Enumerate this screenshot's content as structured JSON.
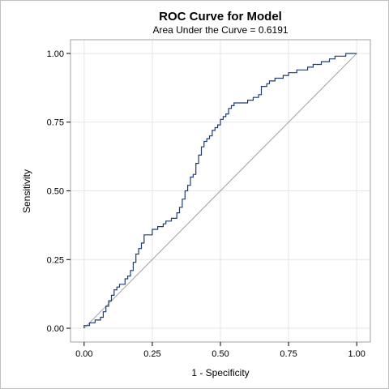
{
  "chart_data": {
    "type": "line",
    "title": "ROC Curve for Model",
    "subtitle": "Area Under the Curve = 0.6191",
    "xlabel": "1 - Specificity",
    "ylabel": "Sensitivity",
    "xlim": [
      -0.05,
      1.05
    ],
    "ylim": [
      -0.05,
      1.05
    ],
    "xticks": [
      "0.00",
      "0.25",
      "0.50",
      "0.75",
      "1.00"
    ],
    "yticks": [
      "0.00",
      "0.25",
      "0.50",
      "0.75",
      "1.00"
    ],
    "grid": true,
    "legend": "none",
    "colors": {
      "roc": "#1f3b73",
      "reference": "#a0a0a0",
      "grid": "#e6e6e6",
      "border": "#a0a0a0"
    },
    "series": [
      {
        "values": [
          [
            0.0,
            0.0
          ],
          [
            0.0,
            0.01
          ],
          [
            0.02,
            0.01
          ],
          [
            0.02,
            0.02
          ],
          [
            0.04,
            0.02
          ],
          [
            0.04,
            0.03
          ],
          [
            0.06,
            0.03
          ],
          [
            0.06,
            0.04
          ],
          [
            0.07,
            0.04
          ],
          [
            0.07,
            0.06
          ],
          [
            0.08,
            0.06
          ],
          [
            0.08,
            0.08
          ],
          [
            0.09,
            0.08
          ],
          [
            0.09,
            0.1
          ],
          [
            0.1,
            0.1
          ],
          [
            0.1,
            0.12
          ],
          [
            0.11,
            0.12
          ],
          [
            0.11,
            0.14
          ],
          [
            0.12,
            0.14
          ],
          [
            0.12,
            0.15
          ],
          [
            0.13,
            0.15
          ],
          [
            0.13,
            0.16
          ],
          [
            0.15,
            0.16
          ],
          [
            0.15,
            0.18
          ],
          [
            0.16,
            0.18
          ],
          [
            0.16,
            0.19
          ],
          [
            0.17,
            0.19
          ],
          [
            0.17,
            0.21
          ],
          [
            0.18,
            0.21
          ],
          [
            0.18,
            0.24
          ],
          [
            0.19,
            0.24
          ],
          [
            0.19,
            0.27
          ],
          [
            0.2,
            0.27
          ],
          [
            0.2,
            0.29
          ],
          [
            0.21,
            0.29
          ],
          [
            0.21,
            0.31
          ],
          [
            0.22,
            0.31
          ],
          [
            0.22,
            0.34
          ],
          [
            0.25,
            0.34
          ],
          [
            0.25,
            0.36
          ],
          [
            0.27,
            0.36
          ],
          [
            0.27,
            0.37
          ],
          [
            0.29,
            0.37
          ],
          [
            0.29,
            0.38
          ],
          [
            0.3,
            0.38
          ],
          [
            0.3,
            0.39
          ],
          [
            0.32,
            0.39
          ],
          [
            0.32,
            0.4
          ],
          [
            0.34,
            0.4
          ],
          [
            0.34,
            0.42
          ],
          [
            0.35,
            0.42
          ],
          [
            0.35,
            0.44
          ],
          [
            0.36,
            0.44
          ],
          [
            0.36,
            0.47
          ],
          [
            0.37,
            0.47
          ],
          [
            0.37,
            0.5
          ],
          [
            0.38,
            0.5
          ],
          [
            0.38,
            0.52
          ],
          [
            0.39,
            0.52
          ],
          [
            0.39,
            0.55
          ],
          [
            0.4,
            0.55
          ],
          [
            0.4,
            0.56
          ],
          [
            0.41,
            0.56
          ],
          [
            0.41,
            0.6
          ],
          [
            0.42,
            0.6
          ],
          [
            0.42,
            0.63
          ],
          [
            0.43,
            0.63
          ],
          [
            0.43,
            0.66
          ],
          [
            0.44,
            0.66
          ],
          [
            0.44,
            0.68
          ],
          [
            0.45,
            0.68
          ],
          [
            0.45,
            0.69
          ],
          [
            0.46,
            0.69
          ],
          [
            0.46,
            0.7
          ],
          [
            0.47,
            0.7
          ],
          [
            0.47,
            0.72
          ],
          [
            0.48,
            0.72
          ],
          [
            0.48,
            0.73
          ],
          [
            0.49,
            0.73
          ],
          [
            0.49,
            0.74
          ],
          [
            0.5,
            0.74
          ],
          [
            0.5,
            0.76
          ],
          [
            0.51,
            0.76
          ],
          [
            0.51,
            0.77
          ],
          [
            0.52,
            0.77
          ],
          [
            0.52,
            0.78
          ],
          [
            0.53,
            0.78
          ],
          [
            0.53,
            0.8
          ],
          [
            0.54,
            0.8
          ],
          [
            0.54,
            0.81
          ],
          [
            0.55,
            0.81
          ],
          [
            0.55,
            0.82
          ],
          [
            0.6,
            0.82
          ],
          [
            0.6,
            0.83
          ],
          [
            0.62,
            0.83
          ],
          [
            0.62,
            0.84
          ],
          [
            0.64,
            0.84
          ],
          [
            0.64,
            0.85
          ],
          [
            0.65,
            0.85
          ],
          [
            0.65,
            0.88
          ],
          [
            0.67,
            0.88
          ],
          [
            0.67,
            0.89
          ],
          [
            0.68,
            0.89
          ],
          [
            0.68,
            0.9
          ],
          [
            0.7,
            0.9
          ],
          [
            0.7,
            0.91
          ],
          [
            0.73,
            0.91
          ],
          [
            0.73,
            0.92
          ],
          [
            0.75,
            0.92
          ],
          [
            0.75,
            0.93
          ],
          [
            0.78,
            0.93
          ],
          [
            0.78,
            0.94
          ],
          [
            0.82,
            0.94
          ],
          [
            0.82,
            0.95
          ],
          [
            0.84,
            0.95
          ],
          [
            0.84,
            0.96
          ],
          [
            0.87,
            0.96
          ],
          [
            0.87,
            0.97
          ],
          [
            0.9,
            0.97
          ],
          [
            0.9,
            0.98
          ],
          [
            0.92,
            0.98
          ],
          [
            0.92,
            0.99
          ],
          [
            0.96,
            0.99
          ],
          [
            0.96,
            1.0
          ],
          [
            1.0,
            1.0
          ]
        ]
      },
      {
        "values": [
          [
            0,
            0
          ],
          [
            1,
            1
          ]
        ]
      }
    ]
  }
}
